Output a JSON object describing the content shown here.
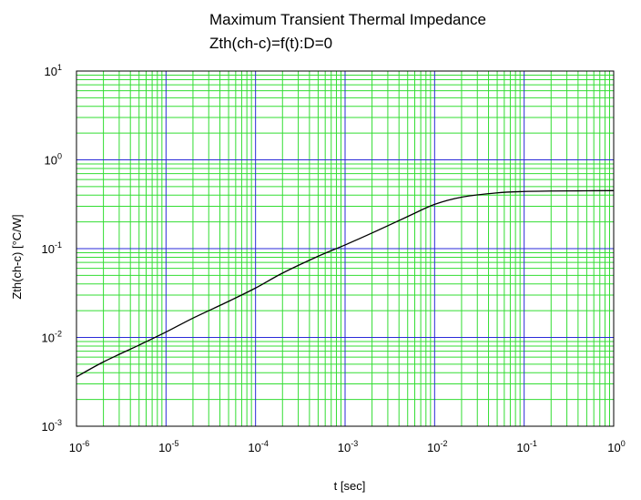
{
  "chart_data": {
    "type": "line",
    "title": [
      "Maximum Transient Thermal Impedance",
      "Zth(ch-c)=f(t):D=0"
    ],
    "xlabel": "t [sec]",
    "ylabel": "Zth(ch-c) [°C/W]",
    "xscale": "log",
    "yscale": "log",
    "xlim": [
      1e-06,
      1
    ],
    "ylim": [
      0.001,
      10
    ],
    "x_ticks": [
      {
        "base": "10",
        "exp": "-6",
        "value": 1e-06
      },
      {
        "base": "10",
        "exp": "-5",
        "value": 1e-05
      },
      {
        "base": "10",
        "exp": "-4",
        "value": 0.0001
      },
      {
        "base": "10",
        "exp": "-3",
        "value": 0.001
      },
      {
        "base": "10",
        "exp": "-2",
        "value": 0.01
      },
      {
        "base": "10",
        "exp": "-1",
        "value": 0.1
      },
      {
        "base": "10",
        "exp": "0",
        "value": 1
      }
    ],
    "y_ticks": [
      {
        "base": "10",
        "exp": "-3",
        "value": 0.001
      },
      {
        "base": "10",
        "exp": "-2",
        "value": 0.01
      },
      {
        "base": "10",
        "exp": "-1",
        "value": 0.1
      },
      {
        "base": "10",
        "exp": "0",
        "value": 1
      },
      {
        "base": "10",
        "exp": "1",
        "value": 10
      }
    ],
    "grid": {
      "major": true,
      "minor": true,
      "major_color": "#2a2ad8",
      "minor_color": "#33dd33"
    },
    "line_color": "#000000",
    "x": [
      1e-06,
      2e-06,
      5e-06,
      1e-05,
      2e-05,
      5e-05,
      0.0001,
      0.0002,
      0.0005,
      0.001,
      0.002,
      0.005,
      0.01,
      0.02,
      0.05,
      0.1,
      0.2,
      0.5,
      1
    ],
    "y": [
      0.0036,
      0.0053,
      0.0082,
      0.0115,
      0.0165,
      0.0255,
      0.036,
      0.053,
      0.082,
      0.11,
      0.15,
      0.23,
      0.315,
      0.38,
      0.425,
      0.44,
      0.445,
      0.448,
      0.45
    ]
  }
}
